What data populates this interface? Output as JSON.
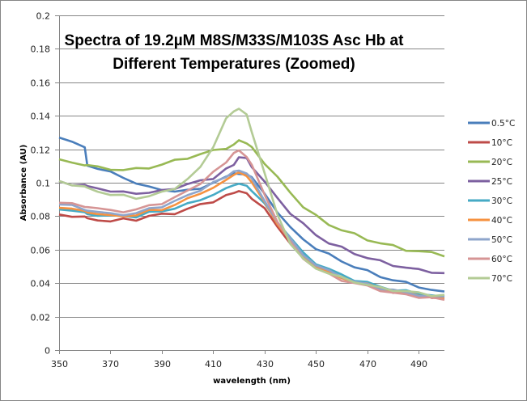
{
  "chart_data": {
    "type": "line",
    "title_lines": [
      "Spectra of 19.2µM M8S/M33S/M103S  Asc Hb at",
      "Different Temperatures (Zoomed)"
    ],
    "xlabel": "wavelength (nm)",
    "ylabel": "Absorbance (AU)",
    "xlim": [
      350,
      500
    ],
    "ylim": [
      0,
      0.2
    ],
    "xticks": [
      "350",
      "370",
      "390",
      "410",
      "430",
      "450",
      "470",
      "490"
    ],
    "xtick_values": [
      350,
      370,
      390,
      410,
      430,
      450,
      470,
      490
    ],
    "yticks": [
      "0",
      "0.02",
      "0.04",
      "0.06",
      "0.08",
      "0.1",
      "0.12",
      "0.14",
      "0.16",
      "0.18",
      "0.2"
    ],
    "ytick_values": [
      0,
      0.02,
      0.04,
      0.06,
      0.08,
      0.1,
      0.12,
      0.14,
      0.16,
      0.18,
      0.2
    ],
    "grid": true,
    "legend_position": "right",
    "x": [
      350,
      355,
      360,
      361,
      365,
      370,
      375,
      380,
      385,
      390,
      395,
      400,
      405,
      410,
      415,
      418,
      420,
      423,
      425,
      430,
      435,
      440,
      445,
      450,
      455,
      460,
      465,
      470,
      475,
      480,
      485,
      490,
      495,
      500
    ],
    "series": [
      {
        "name": "0.5°C",
        "color": "#4A7EBB",
        "values": [
          0.127,
          0.124,
          0.121,
          0.111,
          0.109,
          0.106,
          0.103,
          0.1,
          0.097,
          0.096,
          0.095,
          0.095,
          0.097,
          0.1,
          0.103,
          0.105,
          0.106,
          0.105,
          0.103,
          0.093,
          0.083,
          0.073,
          0.066,
          0.061,
          0.057,
          0.053,
          0.05,
          0.047,
          0.044,
          0.042,
          0.04,
          0.038,
          0.036,
          0.035
        ]
      },
      {
        "name": "10°C",
        "color": "#BE4B48",
        "values": [
          0.081,
          0.08,
          0.079,
          0.079,
          0.078,
          0.077,
          0.078,
          0.078,
          0.08,
          0.081,
          0.082,
          0.084,
          0.087,
          0.089,
          0.092,
          0.094,
          0.095,
          0.093,
          0.091,
          0.084,
          0.074,
          0.064,
          0.056,
          0.05,
          0.046,
          0.043,
          0.041,
          0.039,
          0.037,
          0.035,
          0.034,
          0.033,
          0.032,
          0.031
        ]
      },
      {
        "name": "20°C",
        "color": "#98B954",
        "values": [
          0.114,
          0.112,
          0.111,
          0.11,
          0.109,
          0.108,
          0.108,
          0.108,
          0.109,
          0.111,
          0.113,
          0.115,
          0.117,
          0.119,
          0.121,
          0.123,
          0.125,
          0.124,
          0.121,
          0.112,
          0.103,
          0.094,
          0.086,
          0.08,
          0.075,
          0.072,
          0.069,
          0.066,
          0.064,
          0.062,
          0.06,
          0.059,
          0.058,
          0.056
        ]
      },
      {
        "name": "25°C",
        "color": "#7D60A0",
        "values": [
          0.101,
          0.099,
          0.098,
          0.098,
          0.097,
          0.095,
          0.094,
          0.094,
          0.094,
          0.095,
          0.097,
          0.099,
          0.101,
          0.103,
          0.108,
          0.111,
          0.115,
          0.114,
          0.11,
          0.1,
          0.091,
          0.082,
          0.075,
          0.069,
          0.064,
          0.061,
          0.058,
          0.055,
          0.053,
          0.051,
          0.049,
          0.048,
          0.047,
          0.046
        ]
      },
      {
        "name": "30°C",
        "color": "#46AAC5",
        "values": [
          0.084,
          0.083,
          0.082,
          0.082,
          0.081,
          0.08,
          0.08,
          0.08,
          0.082,
          0.083,
          0.085,
          0.087,
          0.09,
          0.093,
          0.096,
          0.098,
          0.1,
          0.098,
          0.095,
          0.087,
          0.077,
          0.067,
          0.058,
          0.052,
          0.048,
          0.045,
          0.042,
          0.04,
          0.038,
          0.036,
          0.035,
          0.034,
          0.033,
          0.032
        ]
      },
      {
        "name": "40°C",
        "color": "#F69240",
        "values": [
          0.085,
          0.084,
          0.083,
          0.083,
          0.082,
          0.08,
          0.08,
          0.081,
          0.083,
          0.084,
          0.087,
          0.09,
          0.094,
          0.097,
          0.101,
          0.104,
          0.107,
          0.104,
          0.1,
          0.088,
          0.076,
          0.065,
          0.056,
          0.05,
          0.046,
          0.043,
          0.041,
          0.039,
          0.037,
          0.035,
          0.034,
          0.033,
          0.032,
          0.031
        ]
      },
      {
        "name": "50°C",
        "color": "#8EA5CB",
        "values": [
          0.087,
          0.086,
          0.084,
          0.084,
          0.083,
          0.081,
          0.081,
          0.082,
          0.084,
          0.086,
          0.089,
          0.092,
          0.096,
          0.1,
          0.103,
          0.106,
          0.108,
          0.106,
          0.102,
          0.089,
          0.077,
          0.066,
          0.057,
          0.051,
          0.047,
          0.044,
          0.041,
          0.039,
          0.037,
          0.036,
          0.034,
          0.033,
          0.032,
          0.032
        ]
      },
      {
        "name": "60°C",
        "color": "#D69595",
        "values": [
          0.088,
          0.087,
          0.086,
          0.086,
          0.085,
          0.083,
          0.083,
          0.084,
          0.086,
          0.088,
          0.091,
          0.095,
          0.1,
          0.106,
          0.112,
          0.117,
          0.12,
          0.116,
          0.11,
          0.093,
          0.077,
          0.064,
          0.055,
          0.049,
          0.045,
          0.042,
          0.04,
          0.038,
          0.036,
          0.034,
          0.033,
          0.032,
          0.031,
          0.03
        ]
      },
      {
        "name": "70°C",
        "color": "#B3CB95",
        "values": [
          0.101,
          0.099,
          0.097,
          0.097,
          0.095,
          0.093,
          0.092,
          0.091,
          0.092,
          0.094,
          0.097,
          0.102,
          0.109,
          0.122,
          0.138,
          0.143,
          0.144,
          0.14,
          0.131,
          0.105,
          0.081,
          0.064,
          0.054,
          0.049,
          0.046,
          0.043,
          0.041,
          0.039,
          0.037,
          0.036,
          0.035,
          0.034,
          0.033,
          0.033
        ]
      }
    ]
  }
}
